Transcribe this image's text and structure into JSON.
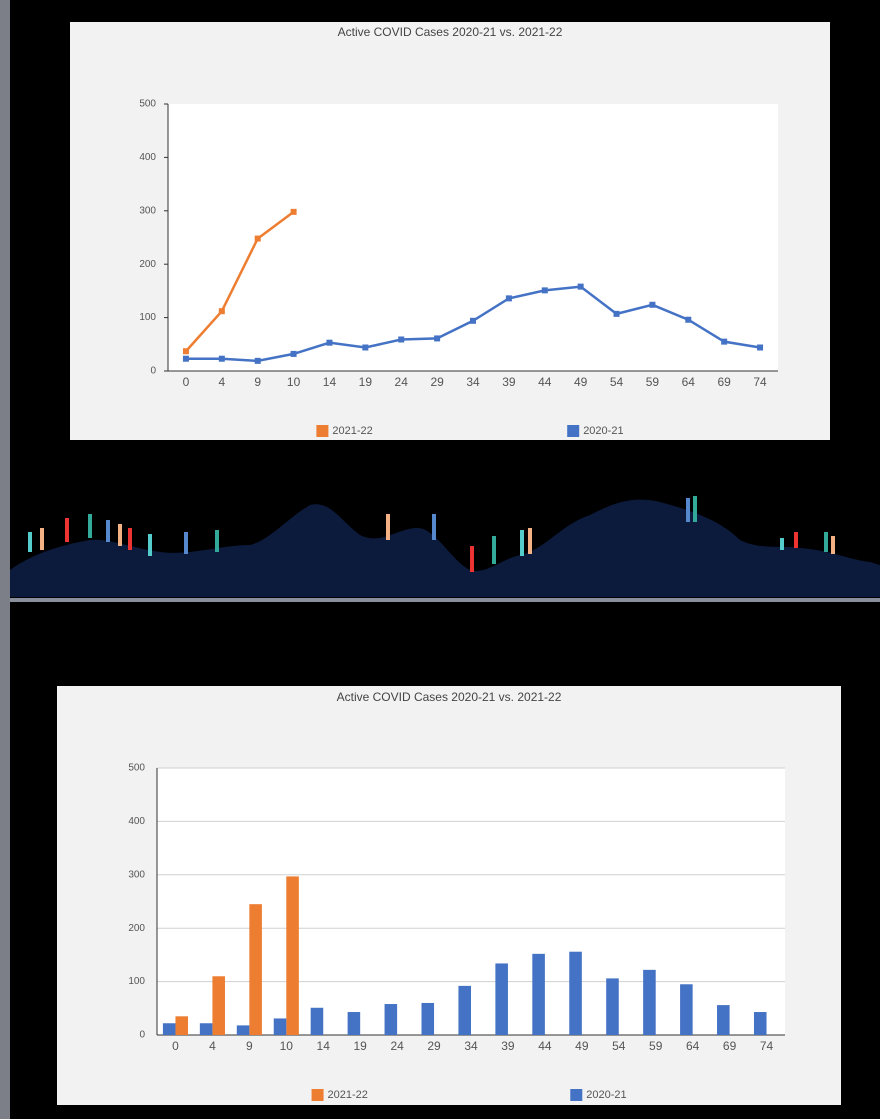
{
  "chart_data": [
    {
      "type": "line",
      "title": "Active COVID Cases 2020-21 vs. 2021-22",
      "categories": [
        "0",
        "4",
        "9",
        "10",
        "14",
        "19",
        "24",
        "29",
        "34",
        "39",
        "44",
        "49",
        "54",
        "59",
        "64",
        "69",
        "74"
      ],
      "series": [
        {
          "name": "2021-22",
          "color": "#ed7d31",
          "values": [
            37,
            112,
            248,
            298,
            null,
            null,
            null,
            null,
            null,
            null,
            null,
            null,
            null,
            null,
            null,
            null,
            null
          ]
        },
        {
          "name": "2020-21",
          "color": "#4472c4",
          "values": [
            23,
            23,
            19,
            32,
            53,
            44,
            59,
            61,
            94,
            136,
            151,
            158,
            107,
            124,
            96,
            55,
            44
          ]
        }
      ],
      "ylim": [
        0,
        500
      ],
      "yticks": [
        0,
        100,
        200,
        300,
        400,
        500
      ],
      "grid": false,
      "legend": "bottom"
    },
    {
      "type": "bar",
      "title": "Active COVID Cases 2020-21 vs. 2021-22",
      "categories": [
        "0",
        "4",
        "9",
        "10",
        "14",
        "19",
        "24",
        "29",
        "34",
        "39",
        "44",
        "49",
        "54",
        "59",
        "64",
        "69",
        "74"
      ],
      "series": [
        {
          "name": "2021-22",
          "color": "#ed7d31",
          "values": [
            35,
            110,
            245,
            297,
            null,
            null,
            null,
            null,
            null,
            null,
            null,
            null,
            null,
            null,
            null,
            null,
            null
          ]
        },
        {
          "name": "2020-21",
          "color": "#4472c4",
          "values": [
            22,
            22,
            18,
            31,
            51,
            43,
            58,
            60,
            92,
            134,
            152,
            156,
            106,
            122,
            95,
            56,
            43
          ]
        }
      ],
      "ylim": [
        0,
        500
      ],
      "yticks": [
        0,
        100,
        200,
        300,
        400,
        500
      ],
      "grid": true,
      "legend": "bottom"
    }
  ]
}
